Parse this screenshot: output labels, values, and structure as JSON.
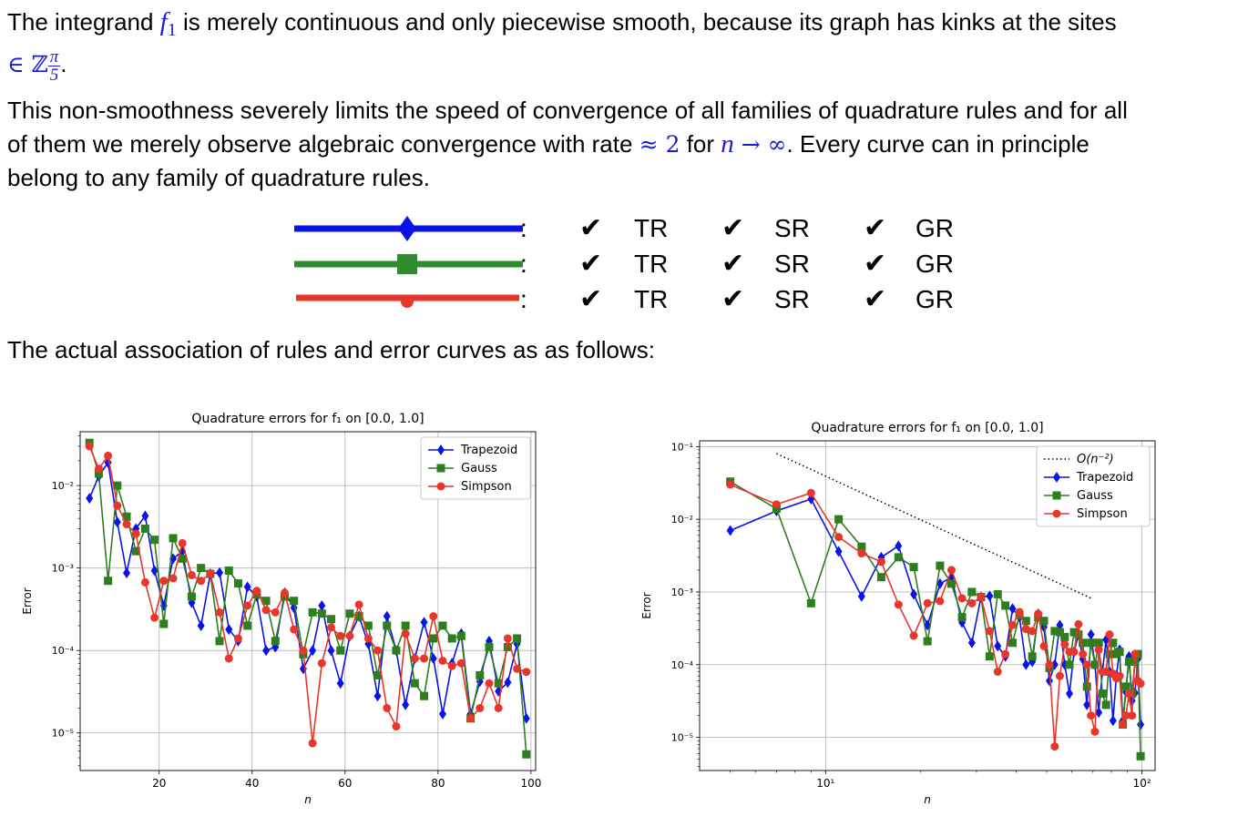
{
  "para1": {
    "part1": "The integrand ",
    "sym": "f",
    "sub": "1",
    "part2": " is merely continuous and only piecewise smooth, because its graph has kinks at the sites",
    "sites_prefix": "∈ ℤ",
    "frac_num": "π",
    "frac_den": "5",
    "end": "."
  },
  "para2": {
    "line1": "This non-smoothness severely limits the speed of convergence of all families of quadrature rules and for all",
    "line2a": "of them we merely observe algebraic convergence with rate ",
    "rate": "≈ 2",
    "line2b": " for ",
    "n": "n",
    "arrow": " → ∞",
    "line2c": ". Every curve can in principle",
    "line3": "belong to any family of quadrature rules."
  },
  "legend_rows": [
    {
      "color": "#0a14e6",
      "marker": "diamond",
      "colon": ":",
      "check": "✔",
      "labels": [
        "TR",
        "SR",
        "GR"
      ]
    },
    {
      "color": "#2e8b2e",
      "marker": "square",
      "colon": ":",
      "check": "✔",
      "labels": [
        "TR",
        "SR",
        "GR"
      ]
    },
    {
      "color": "#e8362c",
      "marker": "circle",
      "colon": ":",
      "check": "✔",
      "labels": [
        "TR",
        "SR",
        "GR"
      ]
    }
  ],
  "para3": "The actual association of rules and error curves as as follows:",
  "colors": {
    "trapezoid": "#0a14e6",
    "gauss": "#2e7d1f",
    "simpson": "#e8362c"
  },
  "chart_data": [
    {
      "type": "line",
      "title": "Quadrature errors for f₁ on [0.0, 1.0]",
      "xlabel": "n",
      "ylabel": "Error",
      "xscale": "linear",
      "yscale": "log",
      "xlim": [
        3,
        101
      ],
      "ylim": [
        3.5e-06,
        0.045
      ],
      "xticks": [
        20,
        40,
        60,
        80,
        100
      ],
      "yticks": [
        "10⁻²",
        "10⁻³",
        "10⁻⁴",
        "10⁻⁵"
      ],
      "grid": true,
      "legend": "top-right",
      "series": [
        {
          "name": "Trapezoid",
          "marker": "diamond",
          "x": [
            5,
            7,
            9,
            11,
            13,
            15,
            17,
            19,
            21,
            23,
            25,
            27,
            29,
            31,
            33,
            35,
            37,
            39,
            41,
            43,
            45,
            47,
            49,
            51,
            53,
            55,
            57,
            59,
            61,
            63,
            65,
            67,
            69,
            71,
            73,
            75,
            77,
            79,
            81,
            83,
            85,
            87,
            89,
            91,
            93,
            95,
            97,
            99
          ],
          "y": [
            0.007,
            0.013,
            0.019,
            0.0036,
            0.00087,
            0.003,
            0.0043,
            0.00093,
            0.00035,
            0.0013,
            0.0016,
            0.00038,
            0.0002,
            0.00085,
            0.00088,
            0.00018,
            0.00013,
            0.00059,
            0.00045,
            0.0001,
            0.00011,
            0.0005,
            0.00033,
            6e-05,
            0.0001,
            0.00035,
            0.0001,
            4e-05,
            0.00015,
            0.00026,
            0.00012,
            2.8e-05,
            0.00026,
            0.0001,
            2.2e-05,
            8e-05,
            0.00022,
            8e-05,
            1.7e-05,
            7e-05,
            0.00016,
            1.7e-05,
            4.2e-05,
            0.00013,
            3.2e-05,
            4.1e-05,
            0.00012,
            1.5e-05
          ]
        },
        {
          "name": "Gauss",
          "marker": "square",
          "x": [
            5,
            7,
            9,
            11,
            13,
            15,
            17,
            19,
            21,
            23,
            25,
            27,
            29,
            31,
            33,
            35,
            37,
            39,
            41,
            43,
            45,
            47,
            49,
            51,
            53,
            55,
            57,
            59,
            61,
            63,
            65,
            67,
            69,
            71,
            73,
            75,
            77,
            79,
            81,
            83,
            85,
            87,
            89,
            91,
            93,
            95,
            97,
            99
          ],
          "y": [
            0.033,
            0.014,
            0.0007,
            0.01,
            0.0042,
            0.0016,
            0.003,
            0.0022,
            0.00021,
            0.0023,
            0.0013,
            0.00045,
            0.001,
            0.00085,
            0.00013,
            0.00093,
            0.00065,
            0.0002,
            0.00048,
            0.0004,
            0.00013,
            0.00045,
            0.0004,
            9e-05,
            0.00029,
            0.00028,
            0.00024,
            0.0001,
            0.00028,
            0.00026,
            0.0002,
            5e-05,
            0.0002,
            0.0001,
            0.0002,
            4e-05,
            2.8e-05,
            0.00014,
            0.0002,
            0.00014,
            0.00015,
            1.5e-05,
            5e-05,
            0.00011,
            4e-05,
            0.00011,
            0.00014,
            5.5e-06
          ]
        },
        {
          "name": "Simpson",
          "marker": "circle",
          "x": [
            5,
            7,
            9,
            11,
            13,
            15,
            17,
            19,
            21,
            23,
            25,
            27,
            29,
            31,
            33,
            35,
            37,
            39,
            41,
            43,
            45,
            47,
            49,
            51,
            53,
            55,
            57,
            59,
            61,
            63,
            65,
            67,
            69,
            71,
            73,
            75,
            77,
            79,
            81,
            83,
            85,
            87,
            89,
            91,
            93,
            95,
            97,
            99
          ],
          "y": [
            0.03,
            0.016,
            0.023,
            0.0057,
            0.0034,
            0.0026,
            0.00067,
            0.00025,
            0.0007,
            0.00075,
            0.002,
            0.00082,
            0.0007,
            0.00085,
            0.00029,
            8e-05,
            0.00014,
            0.00035,
            0.00053,
            0.00031,
            0.00029,
            0.0005,
            0.00018,
            0.0001,
            7.5e-06,
            7e-05,
            0.00019,
            0.00015,
            0.00015,
            0.00036,
            0.00014,
            0.0001,
            2e-05,
            1.2e-05,
            0.00016,
            8e-05,
            8e-05,
            0.00026,
            7.5e-05,
            6.5e-05,
            7e-05,
            1.5e-05,
            2e-05,
            4e-05,
            2e-05,
            0.00014,
            6e-05,
            5.5e-05
          ]
        }
      ]
    },
    {
      "type": "line",
      "title": "Quadrature errors for f₁ on [0.0, 1.0]",
      "xlabel": "n",
      "ylabel": "Error",
      "xscale": "log",
      "yscale": "log",
      "xlim": [
        4,
        110
      ],
      "ylim": [
        3.5e-06,
        0.12
      ],
      "xticks": [
        "10¹",
        "10²"
      ],
      "yticks": [
        "10⁻¹",
        "10⁻²",
        "10⁻³",
        "10⁻⁴",
        "10⁻⁵"
      ],
      "grid": true,
      "legend": "top-right",
      "reference": {
        "name": "O(n⁻²)",
        "x": [
          7,
          70
        ],
        "y": [
          0.08,
          0.0008
        ]
      },
      "series_ref": "same as chart 1"
    }
  ]
}
